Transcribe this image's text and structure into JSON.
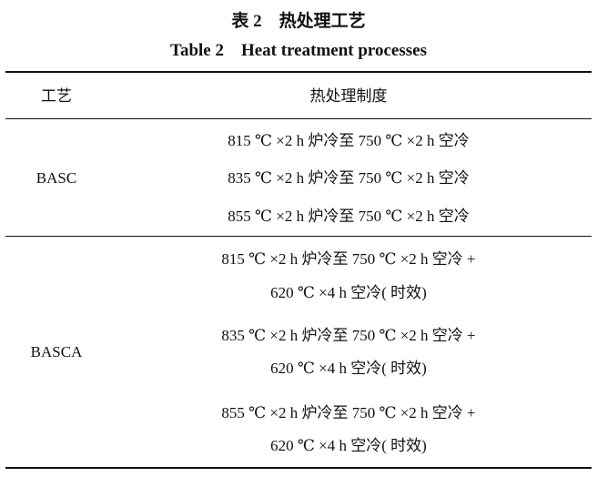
{
  "title_cn": "表 2　热处理工艺",
  "title_en": "Table 2　Heat treatment processes",
  "headers": [
    "工艺",
    "热处理制度"
  ],
  "groups": [
    {
      "name": "BASC",
      "rows": [
        [
          "815 ℃ ×2 h 炉冷至 750 ℃ ×2 h 空冷"
        ],
        [
          "835 ℃ ×2 h 炉冷至 750 ℃ ×2 h 空冷"
        ],
        [
          "855 ℃ ×2 h 炉冷至 750 ℃ ×2 h 空冷"
        ]
      ]
    },
    {
      "name": "BASCA",
      "rows": [
        [
          "815 ℃ ×2 h 炉冷至 750 ℃ ×2 h 空冷 +",
          "620 ℃ ×4 h 空冷( 时效)"
        ],
        [
          "835 ℃ ×2 h 炉冷至 750 ℃ ×2 h 空冷 +",
          "620 ℃ ×4 h 空冷( 时效)"
        ],
        [
          "855 ℃ ×2 h 炉冷至 750 ℃ ×2 h 空冷 +",
          "620 ℃ ×4 h 空冷( 时效)"
        ]
      ]
    }
  ]
}
